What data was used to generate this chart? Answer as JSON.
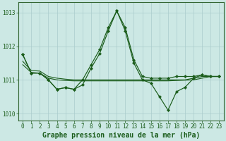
{
  "xlabel": "Graphe pression niveau de la mer (hPa)",
  "bg_color": "#cce8e4",
  "grid_color": "#aacccc",
  "line_color": "#1a5c1a",
  "x": [
    0,
    1,
    2,
    3,
    4,
    5,
    6,
    7,
    8,
    9,
    10,
    11,
    12,
    13,
    14,
    15,
    16,
    17,
    18,
    19,
    20,
    21,
    22,
    23
  ],
  "series_peak": [
    1011.75,
    1011.2,
    1011.2,
    1011.0,
    1010.72,
    1010.77,
    1010.72,
    1011.0,
    1011.45,
    1011.9,
    1012.55,
    1013.05,
    1012.55,
    1011.6,
    1011.1,
    1011.05,
    1011.05,
    1011.05,
    1011.1,
    1011.1,
    1011.1,
    1011.15,
    1011.1,
    1011.1
  ],
  "series_dip": [
    1011.75,
    1011.2,
    1011.2,
    1011.0,
    1010.72,
    1010.77,
    1010.72,
    1010.85,
    1011.35,
    1011.78,
    1012.45,
    1013.05,
    1012.45,
    1011.5,
    1011.0,
    1010.9,
    1010.5,
    1010.1,
    1010.65,
    1010.78,
    1011.05,
    1011.15,
    1011.1,
    1011.1
  ],
  "series_flat1": [
    1011.55,
    1011.28,
    1011.26,
    1011.1,
    1011.05,
    1011.02,
    1011.0,
    1011.0,
    1011.0,
    1011.0,
    1011.0,
    1011.0,
    1011.0,
    1011.0,
    1011.0,
    1011.0,
    1011.0,
    1011.0,
    1011.0,
    1011.0,
    1011.05,
    1011.1,
    1011.1,
    1011.1
  ],
  "series_flat2": [
    1011.45,
    1011.22,
    1011.2,
    1011.05,
    1011.0,
    1010.98,
    1010.97,
    1010.97,
    1010.97,
    1010.97,
    1010.97,
    1010.97,
    1010.97,
    1010.97,
    1010.97,
    1010.97,
    1010.97,
    1010.97,
    1010.98,
    1010.99,
    1011.0,
    1011.05,
    1011.1,
    1011.1
  ],
  "ylim": [
    1009.8,
    1013.3
  ],
  "yticks": [
    1010,
    1011,
    1012,
    1013
  ],
  "xticks": [
    0,
    1,
    2,
    3,
    4,
    5,
    6,
    7,
    8,
    9,
    10,
    11,
    12,
    13,
    14,
    15,
    16,
    17,
    18,
    19,
    20,
    21,
    22,
    23
  ],
  "tick_fontsize": 5.5,
  "label_fontsize": 7
}
